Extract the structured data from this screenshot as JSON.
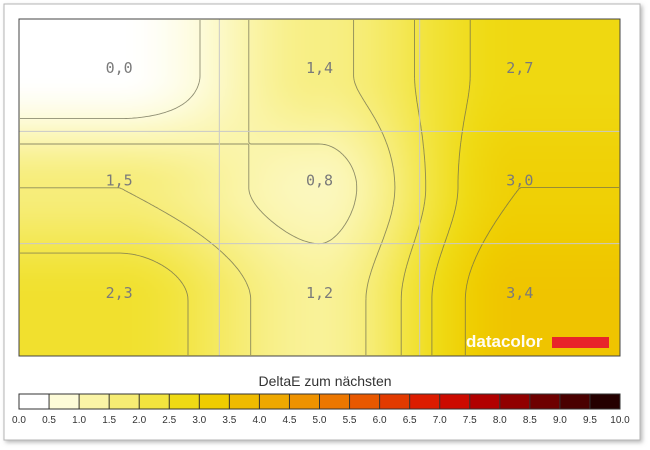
{
  "chart_data": {
    "type": "heatmap",
    "grid": {
      "rows": 3,
      "cols": 3
    },
    "cells": [
      [
        0.0,
        1.4,
        2.7
      ],
      [
        1.5,
        0.8,
        3.0
      ],
      [
        2.3,
        1.2,
        3.4
      ]
    ],
    "cell_labels": [
      [
        "0,0",
        "1,4",
        "2,7"
      ],
      [
        "1,5",
        "0,8",
        "3,0"
      ],
      [
        "2,3",
        "1,2",
        "3,4"
      ]
    ],
    "contour_levels": [
      0.5,
      1.0,
      1.5,
      2.0,
      2.5,
      3.0
    ],
    "gridlines": true,
    "title": "DeltaE zum nächsten",
    "colorbar": {
      "ticks": [
        "0.0",
        "0.5",
        "1.0",
        "1.5",
        "2.0",
        "2.5",
        "3.0",
        "3.5",
        "4.0",
        "4.5",
        "5.0",
        "5.5",
        "6.0",
        "6.5",
        "7.0",
        "7.5",
        "8.0",
        "8.5",
        "9.0",
        "9.5",
        "10.0"
      ],
      "colors": [
        "#ffffff",
        "#fdfbd8",
        "#faf4a6",
        "#f6ec73",
        "#f2e43e",
        "#efda14",
        "#efcc00",
        "#efbb00",
        "#eea800",
        "#ee9200",
        "#ec7700",
        "#e85800",
        "#e23a00",
        "#dc1c00",
        "#cc0a00",
        "#b10000",
        "#910000",
        "#6e0000",
        "#4a0000",
        "#250000"
      ],
      "range": [
        0,
        10
      ]
    },
    "watermark": "datacolor"
  }
}
